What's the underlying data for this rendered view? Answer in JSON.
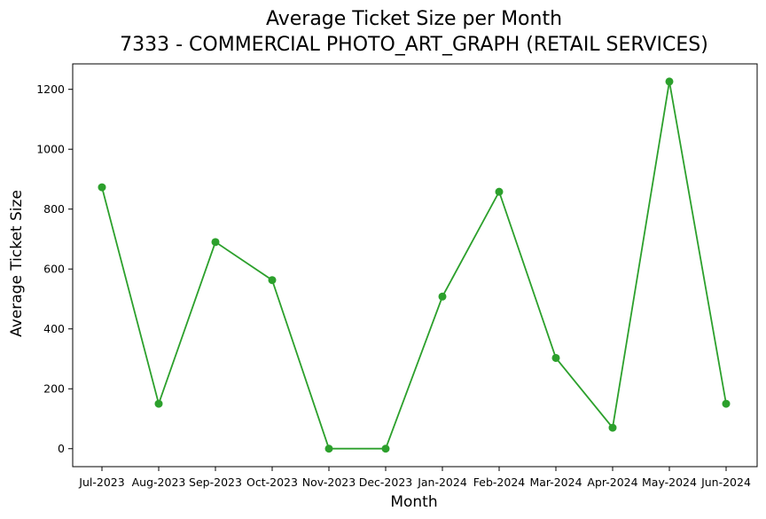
{
  "chart_data": {
    "type": "line",
    "title": "Average Ticket Size per Month",
    "subtitle": "7333 - COMMERCIAL PHOTO_ART_GRAPH (RETAIL SERVICES)",
    "xlabel": "Month",
    "ylabel": "Average Ticket Size",
    "categories": [
      "Jul-2023",
      "Aug-2023",
      "Sep-2023",
      "Oct-2023",
      "Nov-2023",
      "Dec-2023",
      "Jan-2024",
      "Feb-2024",
      "Mar-2024",
      "Apr-2024",
      "May-2024",
      "Jun-2024"
    ],
    "series": [
      {
        "values": [
          873,
          150,
          690,
          563,
          0,
          0,
          508,
          858,
          303,
          70,
          1226,
          150
        ],
        "color": "#2ca02c",
        "marker": "circle"
      }
    ],
    "ylim": [
      -60,
      1285
    ],
    "yticks": [
      0,
      200,
      400,
      600,
      800,
      1000,
      1200
    ],
    "grid": false,
    "legend": false
  }
}
